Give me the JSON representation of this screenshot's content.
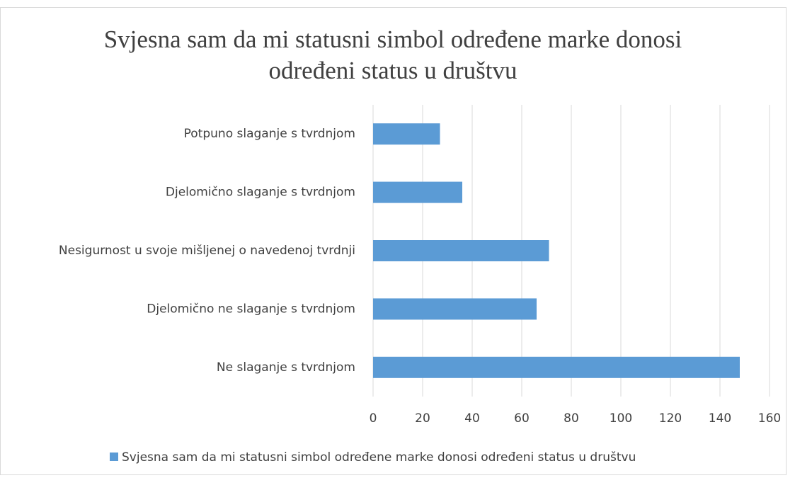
{
  "chart_data": {
    "type": "bar",
    "orientation": "horizontal",
    "title": "Svjesna sam da mi statusni simbol određene marke donosi određeni status u društvu",
    "categories": [
      "Potpuno slaganje s tvrdnjom",
      "Djelomično slaganje s tvrdnjom",
      "Nesigurnost u svoje mišljenej o navedenoj tvrdnji",
      "Djelomično ne slaganje s tvrdnjom",
      "Ne slaganje s tvrdnjom"
    ],
    "series": [
      {
        "name": "Svjesna sam da mi statusni simbol određene marke donosi određeni status u društvu",
        "color": "#5b9bd5",
        "values": [
          27,
          36,
          71,
          66,
          148
        ]
      }
    ],
    "xlim": [
      0,
      160
    ],
    "xticks": [
      0,
      20,
      40,
      60,
      80,
      100,
      120,
      140,
      160
    ],
    "grid": true,
    "legend": "bottom"
  }
}
